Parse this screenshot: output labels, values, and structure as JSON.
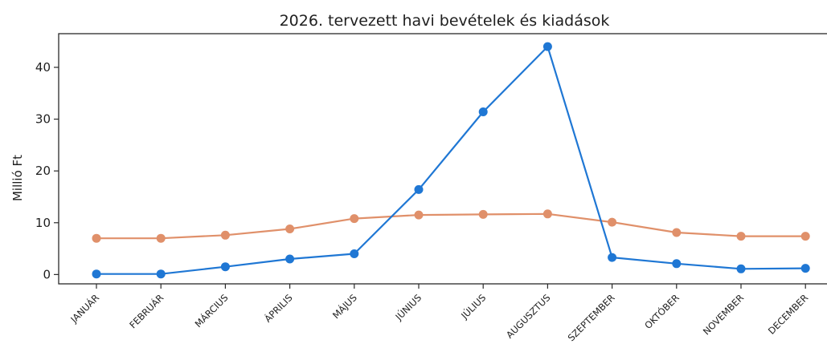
{
  "chart_data": {
    "type": "line",
    "title": "2026. tervezett havi bevételek és kiadások",
    "xlabel": "",
    "ylabel": "Millió Ft",
    "categories": [
      "JANUÁR",
      "FEBRUÁR",
      "MÁRCIUS",
      "ÁPRILIS",
      "MÁJUS",
      "JÚNIUS",
      "JÚLIUS",
      "AUGUSZTUS",
      "SZEPTEMBER",
      "OKTÓBER",
      "NOVEMBER",
      "DECEMBER"
    ],
    "series": [
      {
        "color": "#1f77d4",
        "values": [
          0.1,
          0.1,
          1.5,
          3.0,
          4.0,
          16.4,
          31.4,
          44.0,
          3.3,
          2.1,
          1.1,
          1.2
        ]
      },
      {
        "color": "#e0906a",
        "values": [
          7.0,
          7.0,
          7.6,
          8.8,
          10.8,
          11.5,
          11.6,
          11.7,
          10.1,
          8.1,
          7.4,
          7.4
        ]
      }
    ],
    "ylim": [
      -1.8,
      46.5
    ],
    "yticks": [
      0,
      10,
      20,
      30,
      40
    ],
    "grid": false,
    "legend": "none"
  }
}
